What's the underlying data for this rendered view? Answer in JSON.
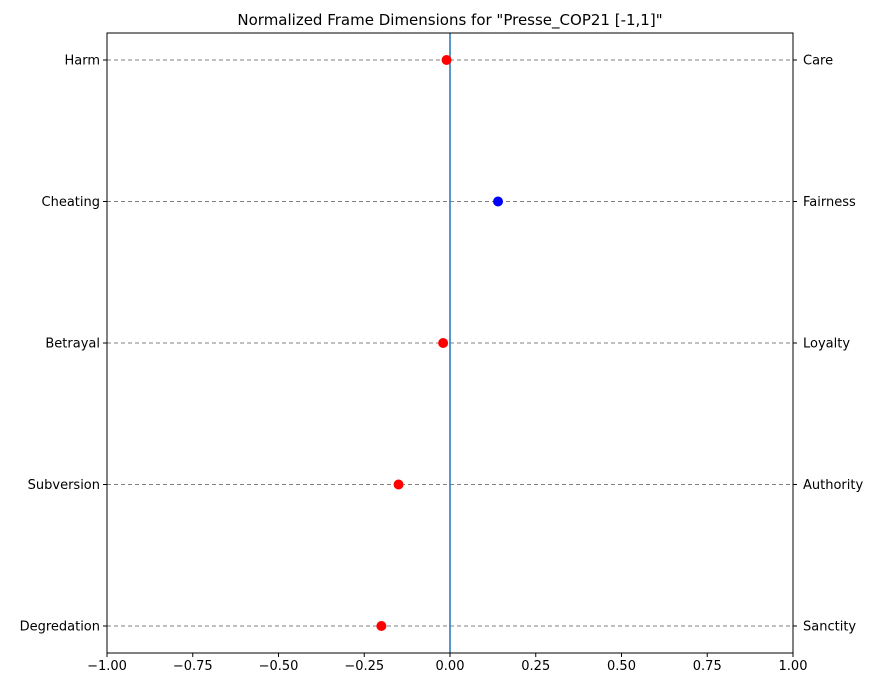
{
  "chart_data": {
    "type": "scatter",
    "title": "Normalized Frame Dimensions for \"Presse_COP21 [-1,1]\"",
    "xlabel": "",
    "ylabel": "",
    "xlim": [
      -1.0,
      1.0
    ],
    "x_ticks": [
      -1.0,
      -0.75,
      -0.5,
      -0.25,
      0.0,
      0.25,
      0.5,
      0.75,
      1.0
    ],
    "x_tick_labels": [
      "−1.00",
      "−0.75",
      "−0.50",
      "−0.25",
      "0.00",
      "0.25",
      "0.50",
      "0.75",
      "1.00"
    ],
    "reference_line_x": 0.0,
    "grid": "horizontal dashed at each category",
    "categories_left": [
      "Harm",
      "Cheating",
      "Betrayal",
      "Subversion",
      "Degredation"
    ],
    "categories_right": [
      "Care",
      "Fairness",
      "Loyalty",
      "Authority",
      "Sanctity"
    ],
    "values": [
      -0.01,
      0.14,
      -0.02,
      -0.15,
      -0.2
    ],
    "colors": {
      "negative": "#ff0000",
      "positive": "#0000ff",
      "reference_line": "#1f77b4",
      "grid": "#808080"
    }
  }
}
